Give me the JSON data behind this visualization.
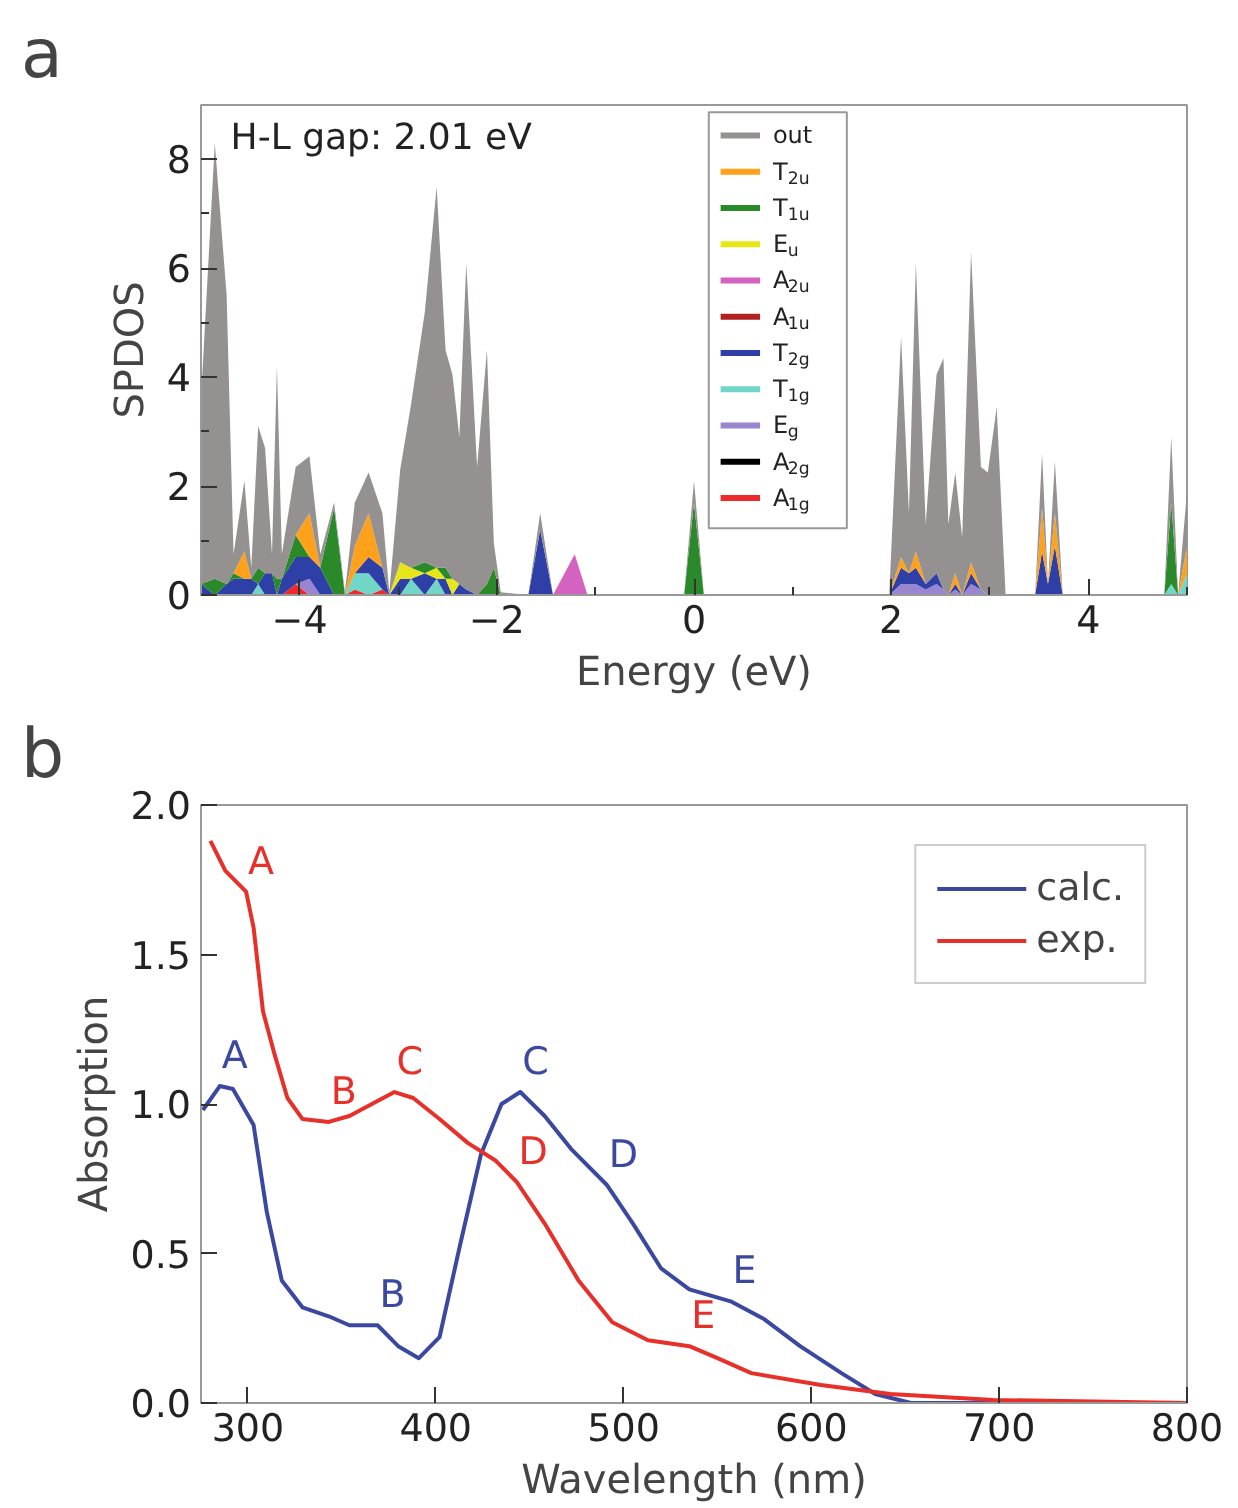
{
  "chart_data": [
    {
      "type": "area",
      "title": "a",
      "stacked": true,
      "xlabel": "Energy (eV)",
      "ylabel": "SPDOS",
      "xlim": [
        -5,
        5
      ],
      "ylim": [
        0,
        9
      ],
      "xticks": [
        {
          "value": -5,
          "label": null
        },
        -4,
        {
          "value": -3,
          "label": null
        },
        -2,
        {
          "value": -1,
          "label": null
        },
        0,
        {
          "value": 1,
          "label": null
        },
        2,
        {
          "value": 3,
          "label": null
        },
        4,
        {
          "value": 5,
          "label": null
        }
      ],
      "yticks": [
        0,
        {
          "value": 1,
          "label": null
        },
        2,
        {
          "value": 3,
          "label": null
        },
        4,
        {
          "value": 5,
          "label": null
        },
        6,
        {
          "value": 7,
          "label": null
        },
        8
      ],
      "grid": false,
      "legend": "top",
      "annotations": [
        "H-L gap: 2.01 eV"
      ],
      "x": [
        -5.0,
        -4.86,
        -4.74,
        -4.67,
        -4.56,
        -4.49,
        -4.42,
        -4.35,
        -4.28,
        -4.23,
        -4.18,
        -4.04,
        -3.9,
        -3.79,
        -3.65,
        -3.54,
        -3.44,
        -3.3,
        -3.16,
        -3.09,
        -2.98,
        -2.87,
        -2.73,
        -2.61,
        -2.52,
        -2.45,
        -2.38,
        -2.31,
        -2.2,
        -2.1,
        -2.03,
        -1.96,
        -1.68,
        -1.56,
        -1.43,
        -1.21,
        -1.08,
        -0.1,
        0.0,
        0.1,
        1.98,
        2.1,
        2.18,
        2.25,
        2.35,
        2.46,
        2.53,
        2.58,
        2.65,
        2.72,
        2.81,
        2.91,
        2.98,
        3.07,
        3.16,
        3.46,
        3.53,
        3.59,
        3.66,
        3.74,
        4.77,
        4.84,
        4.91,
        5.0
      ],
      "series": [
        {
          "name": "A$_{1g}$",
          "color": "#ee2a2a",
          "values": [
            0,
            0,
            0,
            0,
            0,
            0,
            0,
            0,
            0,
            0,
            0,
            0.2,
            0,
            0,
            0,
            0,
            0.1,
            0,
            0.1,
            0,
            0,
            0,
            0,
            0,
            0,
            0,
            0,
            0,
            0,
            0,
            0,
            0,
            0,
            0,
            0,
            0,
            0,
            0,
            0,
            0,
            0,
            0,
            0,
            0,
            0,
            0,
            0,
            0,
            0,
            0,
            0,
            0,
            0,
            0,
            0,
            0,
            0,
            0,
            0,
            0,
            0,
            0,
            0,
            0
          ]
        },
        {
          "name": "A$_{2g}$",
          "color": "#000000",
          "values": [
            null,
            null,
            null,
            null,
            null,
            null,
            null,
            null,
            null,
            null,
            null,
            null,
            null,
            null,
            null,
            null,
            null,
            null,
            null,
            null,
            null,
            null,
            null,
            null,
            null,
            null,
            null,
            null,
            null,
            null,
            null,
            null,
            null,
            null,
            null,
            null,
            null,
            null,
            null,
            null,
            null,
            null,
            null,
            null,
            null,
            null,
            null,
            null,
            null,
            null,
            null,
            null,
            null,
            null,
            null,
            null,
            null,
            null,
            null,
            null,
            null,
            null,
            null,
            null
          ]
        },
        {
          "name": "E$_{g}$",
          "color": "#9a86d0",
          "values": [
            0,
            0,
            0,
            0,
            0,
            0,
            0,
            0,
            0,
            0,
            0,
            0,
            0.3,
            0,
            0,
            0,
            0,
            0,
            0,
            0,
            0,
            0,
            0,
            0,
            0,
            0,
            0,
            0,
            0,
            0,
            0,
            0,
            0,
            0,
            0,
            0,
            0,
            0,
            0,
            0,
            0,
            0.2,
            0.2,
            0.2,
            0.1,
            0.2,
            0.1,
            0,
            0.1,
            0,
            0.2,
            0.1,
            0,
            0,
            0,
            0,
            0,
            0,
            0,
            0,
            0,
            0,
            0,
            0
          ]
        },
        {
          "name": "T$_{1g}$",
          "color": "#6fd6c8",
          "values": [
            0,
            0,
            0,
            0,
            0,
            0,
            0.2,
            0,
            0,
            0,
            0,
            0,
            0,
            0,
            0,
            0,
            0.3,
            0.4,
            0,
            0,
            0,
            0.3,
            0,
            0.3,
            0,
            0,
            0,
            0,
            0,
            0,
            0,
            0,
            0,
            0,
            0,
            0,
            0,
            0,
            0,
            0,
            0,
            0,
            0,
            0,
            0,
            0,
            0,
            0,
            0,
            0,
            0,
            0,
            0,
            0,
            0,
            0,
            0,
            0,
            0,
            0,
            0,
            0.2,
            0,
            0.4
          ]
        },
        {
          "name": "T$_{2g}$",
          "color": "#2f3fa8",
          "values": [
            0.2,
            0,
            0.2,
            0.3,
            0.3,
            0.3,
            0,
            0.4,
            0.4,
            0,
            0.3,
            0.5,
            0.4,
            0.5,
            0,
            0,
            0,
            0.3,
            0.4,
            0,
            0.3,
            0,
            0.4,
            0,
            0.3,
            0,
            0.2,
            0.1,
            0,
            0,
            0,
            0,
            0,
            1.2,
            0,
            0,
            0,
            0,
            0,
            0,
            0,
            0.3,
            0.2,
            0.3,
            0.1,
            0.2,
            0,
            0,
            0.1,
            0,
            0.2,
            0,
            0,
            0,
            0,
            0,
            0.8,
            0.2,
            0.9,
            0,
            0,
            0,
            0,
            0
          ]
        },
        {
          "name": "A$_{1u}$",
          "color": "#b22222",
          "values": [
            null,
            null,
            null,
            null,
            null,
            null,
            null,
            null,
            null,
            null,
            null,
            null,
            null,
            null,
            null,
            null,
            null,
            null,
            null,
            null,
            null,
            null,
            null,
            null,
            null,
            null,
            null,
            null,
            null,
            null,
            null,
            null,
            null,
            null,
            null,
            null,
            null,
            null,
            null,
            null,
            null,
            null,
            null,
            null,
            null,
            null,
            null,
            null,
            null,
            null,
            null,
            null,
            null,
            null,
            null,
            null,
            null,
            null,
            null,
            null,
            null,
            null,
            null,
            null
          ]
        },
        {
          "name": "A$_{2u}$",
          "color": "#d462c0",
          "values": [
            null,
            null,
            null,
            null,
            null,
            null,
            null,
            null,
            null,
            null,
            null,
            null,
            null,
            null,
            null,
            null,
            null,
            null,
            null,
            null,
            null,
            null,
            null,
            null,
            null,
            null,
            null,
            null,
            null,
            null,
            null,
            null,
            null,
            null,
            0,
            0.75,
            0,
            null,
            null,
            null,
            null,
            null,
            null,
            null,
            null,
            null,
            null,
            null,
            null,
            null,
            null,
            null,
            null,
            null,
            null,
            null,
            null,
            null,
            null,
            null,
            null,
            null,
            null,
            null
          ]
        },
        {
          "name": "E$_{u}$",
          "color": "#e6e619",
          "values": [
            null,
            null,
            null,
            null,
            null,
            null,
            null,
            null,
            null,
            null,
            null,
            null,
            null,
            null,
            null,
            null,
            null,
            null,
            null,
            0,
            0.3,
            0.2,
            0,
            0.2,
            0,
            0.3,
            0,
            null,
            null,
            null,
            null,
            null,
            null,
            null,
            null,
            null,
            null,
            null,
            null,
            null,
            null,
            null,
            null,
            null,
            null,
            null,
            null,
            null,
            null,
            null,
            null,
            null,
            null,
            null,
            null,
            null,
            null,
            null,
            null,
            null,
            null,
            null,
            null,
            null
          ]
        },
        {
          "name": "T$_{1u}$",
          "color": "#2a8a2a",
          "values": [
            0,
            0.3,
            0,
            0.1,
            0,
            0,
            0.3,
            0,
            0,
            0.3,
            0,
            0.4,
            0,
            0,
            1.6,
            0,
            0,
            0,
            0,
            0,
            0,
            0,
            0.2,
            0,
            0.2,
            0,
            0,
            0,
            0,
            0.2,
            0.5,
            0,
            0,
            0,
            0,
            0,
            0,
            0,
            1.7,
            0,
            0,
            0,
            0,
            0,
            0,
            0,
            0,
            0,
            0,
            0,
            0,
            0,
            0,
            0,
            0,
            0,
            0,
            0,
            0,
            0,
            0,
            1.5,
            0,
            0
          ]
        },
        {
          "name": "T$_{2u}$",
          "color": "#ffa11a",
          "values": [
            null,
            null,
            null,
            0,
            0.5,
            0,
            null,
            null,
            null,
            null,
            null,
            0,
            0.8,
            0,
            null,
            0,
            0.5,
            0.8,
            0,
            null,
            null,
            null,
            null,
            null,
            null,
            null,
            null,
            null,
            null,
            null,
            null,
            null,
            null,
            null,
            null,
            null,
            null,
            null,
            null,
            null,
            0,
            0.2,
            0,
            0.3,
            0,
            null,
            null,
            0,
            0.2,
            0,
            0.2,
            0,
            null,
            null,
            null,
            0,
            0.8,
            0,
            0.6,
            0,
            null,
            null,
            0,
            0.5
          ]
        },
        {
          "name": "out",
          "color": "#959190",
          "values": [
            3.4,
            8.0,
            5.3,
            0.35,
            1.3,
            0.2,
            2.6,
            2.3,
            0.35,
            3.9,
            0.45,
            1.25,
            1.05,
            0.25,
            0.1,
            0.05,
            0.8,
            0.75,
            1.0,
            0.05,
            1.7,
            3.0,
            4.6,
            7.0,
            4.0,
            3.75,
            2.7,
            6.0,
            2.35,
            4.3,
            0.45,
            0.05,
            0,
            0.3,
            0,
            0,
            0,
            0,
            0.4,
            0,
            0,
            4.05,
            1.1,
            5.3,
            1.1,
            3.65,
            4.25,
            1.3,
            1.85,
            1.05,
            5.7,
            2.25,
            2.25,
            3.45,
            0,
            0,
            1.0,
            0,
            0.95,
            0,
            0,
            1.2,
            0,
            1.0
          ]
        }
      ]
    },
    {
      "type": "line",
      "title": "b",
      "xlabel": "Wavelength (nm)",
      "ylabel": "Absorption",
      "xlim": [
        275,
        800
      ],
      "ylim": [
        0,
        2
      ],
      "xticks": [
        300,
        400,
        500,
        600,
        700,
        800
      ],
      "yticks": [
        {
          "value": 0,
          "label": "0.0"
        },
        {
          "value": 0.5,
          "label": "0.5"
        },
        {
          "value": 1,
          "label": "1.0"
        },
        {
          "value": 1.5,
          "label": "1.5"
        },
        {
          "value": 2,
          "label": "2.0"
        }
      ],
      "grid": false,
      "legend": "top right",
      "line_style": "solid",
      "marker": "none",
      "series": [
        {
          "name": "calc.",
          "color": "#3b48a0",
          "x": [
            276,
            285,
            292,
            303,
            310,
            318,
            329,
            343,
            354,
            369,
            380,
            391,
            402,
            413,
            424,
            435,
            445,
            458,
            472,
            491,
            505,
            520,
            535,
            557,
            575,
            594,
            616,
            634,
            653,
            800
          ],
          "values": [
            0.98,
            1.06,
            1.05,
            0.93,
            0.64,
            0.41,
            0.32,
            0.29,
            0.26,
            0.26,
            0.19,
            0.15,
            0.22,
            0.53,
            0.83,
            1.0,
            1.04,
            0.96,
            0.85,
            0.73,
            0.6,
            0.45,
            0.38,
            0.34,
            0.28,
            0.19,
            0.1,
            0.03,
            0.0,
            0.0
          ]
        },
        {
          "name": "exp.",
          "color": "#e8302a",
          "x": [
            280,
            288,
            299,
            303,
            308,
            314,
            321,
            329,
            343,
            354,
            366,
            378,
            388,
            402,
            417,
            432,
            443,
            458,
            476,
            494,
            513,
            535,
            550,
            568,
            605,
            642,
            697,
            800
          ],
          "values": [
            1.88,
            1.78,
            1.71,
            1.59,
            1.31,
            1.17,
            1.02,
            0.95,
            0.94,
            0.96,
            1.0,
            1.04,
            1.02,
            0.95,
            0.87,
            0.81,
            0.74,
            0.6,
            0.41,
            0.27,
            0.21,
            0.19,
            0.15,
            0.1,
            0.06,
            0.03,
            0.01,
            0.0
          ]
        }
      ],
      "annotations": [
        {
          "text": "A",
          "x": 285,
          "y": 1.06
        },
        {
          "text": "B",
          "x": 369,
          "y": 0.26
        },
        {
          "text": "C",
          "x": 445,
          "y": 1.04
        },
        {
          "text": "D",
          "x": 491,
          "y": 0.73
        },
        {
          "text": "E",
          "x": 557,
          "y": 0.34
        },
        {
          "text": "A",
          "x": 299,
          "y": 1.71
        },
        {
          "text": "B",
          "x": 343,
          "y": 0.94
        },
        {
          "text": "C",
          "x": 378,
          "y": 1.04
        },
        {
          "text": "D",
          "x": 443,
          "y": 0.74
        },
        {
          "text": "E",
          "x": 535,
          "y": 0.19
        }
      ]
    }
  ]
}
